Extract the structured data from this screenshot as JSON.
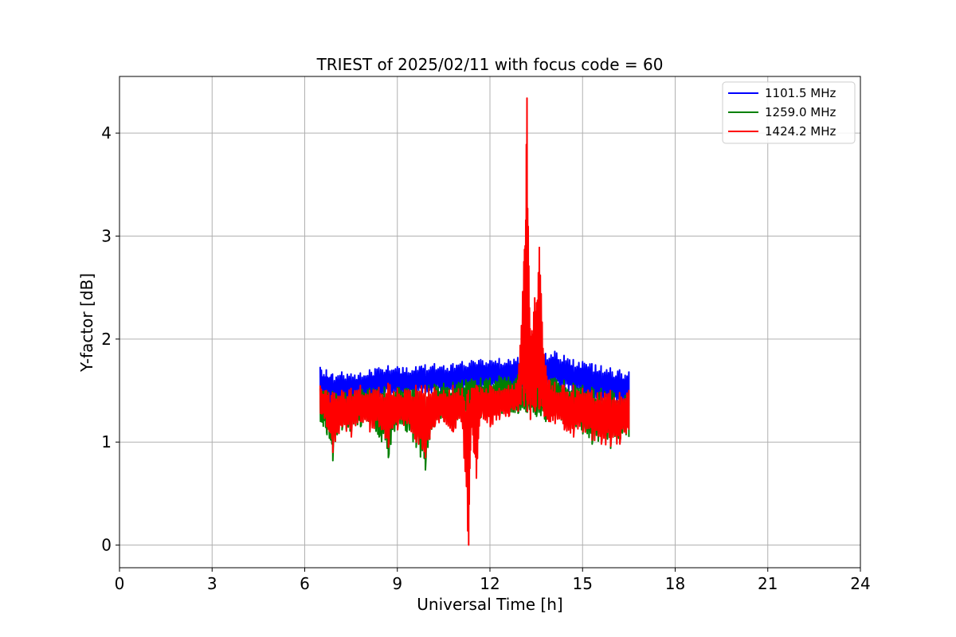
{
  "chart_data": {
    "type": "line",
    "title": "TRIEST of 2025/02/11 with focus code = 60",
    "xlabel": "Universal Time [h]",
    "ylabel": "Y-factor [dB]",
    "xlim": [
      0,
      24
    ],
    "ylim": [
      -0.22,
      4.55
    ],
    "xticks": [
      0,
      3,
      6,
      9,
      12,
      15,
      18,
      21,
      24
    ],
    "yticks": [
      0,
      1,
      2,
      3,
      4
    ],
    "grid": true,
    "legend_position": "top-right",
    "series": [
      {
        "name": "1101.5 MHz",
        "color": "#0000ff",
        "x": [
          6.5,
          6.7,
          6.9,
          7.2,
          7.5,
          7.8,
          8.1,
          8.4,
          8.7,
          9.0,
          9.3,
          9.6,
          9.9,
          10.2,
          10.5,
          10.8,
          11.1,
          11.4,
          11.7,
          12.0,
          12.3,
          12.6,
          12.9,
          13.2,
          13.5,
          13.8,
          14.1,
          14.4,
          14.7,
          15.0,
          15.3,
          15.6,
          15.9,
          16.2,
          16.5
        ],
        "upper": [
          1.73,
          1.7,
          1.66,
          1.68,
          1.66,
          1.67,
          1.7,
          1.72,
          1.74,
          1.73,
          1.72,
          1.73,
          1.75,
          1.76,
          1.74,
          1.76,
          1.78,
          1.79,
          1.8,
          1.79,
          1.81,
          1.8,
          1.82,
          1.78,
          1.8,
          1.86,
          1.88,
          1.84,
          1.8,
          1.78,
          1.76,
          1.74,
          1.72,
          1.7,
          1.68
        ],
        "lower": [
          1.38,
          1.36,
          1.34,
          1.36,
          1.38,
          1.4,
          1.42,
          1.44,
          1.46,
          1.44,
          1.43,
          1.45,
          1.47,
          1.48,
          1.46,
          1.47,
          1.48,
          1.49,
          1.5,
          1.49,
          1.51,
          1.5,
          1.52,
          1.5,
          1.51,
          1.53,
          1.52,
          1.5,
          1.47,
          1.45,
          1.42,
          1.4,
          1.38,
          1.36,
          1.35
        ]
      },
      {
        "name": "1259.0 MHz",
        "color": "#008000",
        "x": [
          6.5,
          6.7,
          6.9,
          7.2,
          7.5,
          7.8,
          8.1,
          8.4,
          8.7,
          9.0,
          9.3,
          9.6,
          9.9,
          10.2,
          10.5,
          10.8,
          11.1,
          11.4,
          11.7,
          12.0,
          12.3,
          12.6,
          12.9,
          13.2,
          13.5,
          13.8,
          14.1,
          14.4,
          14.7,
          15.0,
          15.3,
          15.6,
          15.9,
          16.2,
          16.5
        ],
        "upper": [
          1.52,
          1.5,
          1.49,
          1.48,
          1.5,
          1.51,
          1.52,
          1.53,
          1.55,
          1.53,
          1.52,
          1.54,
          1.55,
          1.56,
          1.57,
          1.58,
          1.6,
          1.61,
          1.62,
          1.62,
          1.64,
          1.63,
          1.65,
          1.62,
          1.63,
          1.64,
          1.62,
          1.6,
          1.57,
          1.55,
          1.53,
          1.52,
          1.5,
          1.48,
          1.47
        ],
        "lower": [
          1.2,
          1.1,
          0.82,
          1.12,
          1.1,
          1.15,
          1.2,
          1.05,
          0.85,
          1.18,
          1.1,
          0.95,
          0.73,
          1.15,
          1.2,
          1.12,
          1.22,
          1.25,
          1.24,
          1.28,
          1.27,
          1.3,
          1.28,
          1.29,
          1.25,
          1.2,
          1.22,
          1.18,
          1.15,
          1.08,
          0.98,
          1.02,
          0.94,
          1.0,
          1.05
        ]
      },
      {
        "name": "1424.2 MHz",
        "color": "#ff0000",
        "x": [
          6.5,
          6.7,
          6.9,
          7.2,
          7.5,
          7.8,
          8.1,
          8.4,
          8.7,
          9.0,
          9.3,
          9.6,
          9.9,
          10.2,
          10.5,
          10.8,
          11.1,
          11.3,
          11.4,
          11.55,
          11.7,
          12.0,
          12.3,
          12.6,
          12.9,
          13.1,
          13.2,
          13.3,
          13.45,
          13.6,
          13.75,
          13.9,
          14.1,
          14.4,
          14.7,
          15.0,
          15.3,
          15.6,
          15.9,
          16.2,
          16.5
        ],
        "upper": [
          1.55,
          1.5,
          1.48,
          1.5,
          1.52,
          1.55,
          1.5,
          1.53,
          1.57,
          1.52,
          1.5,
          1.55,
          1.55,
          1.53,
          1.5,
          1.55,
          1.52,
          1.5,
          1.52,
          1.55,
          1.53,
          1.55,
          1.52,
          1.55,
          1.6,
          2.75,
          4.34,
          2.1,
          2.4,
          2.89,
          1.85,
          1.6,
          1.58,
          1.55,
          1.55,
          1.52,
          1.5,
          1.48,
          1.5,
          1.48,
          1.5
        ],
        "lower": [
          1.28,
          1.15,
          0.9,
          1.15,
          1.05,
          1.2,
          1.1,
          1.15,
          0.95,
          1.12,
          1.18,
          1.0,
          0.85,
          1.15,
          1.2,
          1.1,
          1.2,
          0.0,
          1.15,
          0.65,
          1.25,
          1.15,
          1.22,
          1.25,
          1.3,
          1.35,
          1.3,
          1.22,
          1.3,
          1.32,
          1.25,
          1.2,
          1.18,
          1.12,
          1.05,
          1.1,
          1.02,
          0.98,
          0.96,
          0.98,
          1.12
        ]
      }
    ]
  }
}
